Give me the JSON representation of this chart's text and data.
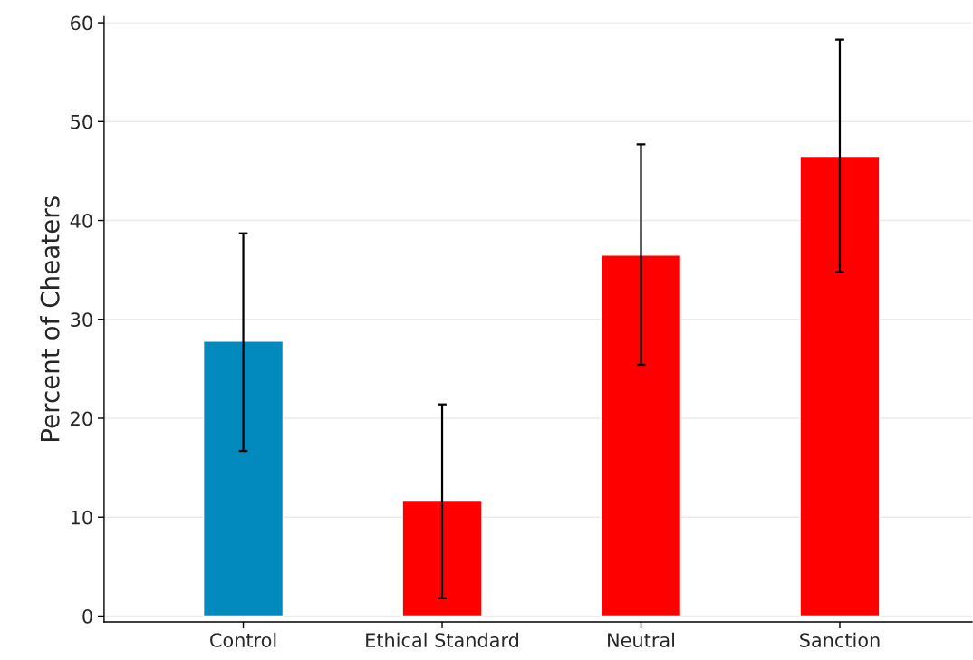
{
  "chart_data": {
    "type": "bar",
    "ylabel": "Percent of Cheaters",
    "categories": [
      "Control",
      "Ethical Standard",
      "Neutral",
      "Sanction"
    ],
    "values": [
      27.8,
      11.7,
      36.5,
      46.5
    ],
    "colors": [
      "#028abe",
      "#ff0000",
      "#ff0000",
      "#ff0000"
    ],
    "errors": [
      [
        16.7,
        38.7
      ],
      [
        1.8,
        21.4
      ],
      [
        25.4,
        47.7
      ],
      [
        34.8,
        58.3
      ]
    ],
    "ylim": [
      -0.6,
      60.6
    ],
    "yticks": [
      0,
      10,
      20,
      30,
      40,
      50,
      60
    ],
    "grid": "y"
  }
}
